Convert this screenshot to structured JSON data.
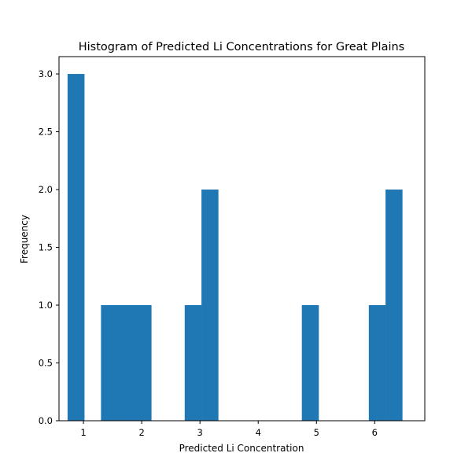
{
  "chart_data": {
    "type": "bar",
    "title": "Histogram of Predicted Li Concentrations for Great Plains",
    "xlabel": "Predicted Li Concentration",
    "ylabel": "Frequency",
    "xlim": [
      0.58,
      6.86
    ],
    "ylim": [
      0,
      3.15
    ],
    "xticks": [
      1,
      2,
      3,
      4,
      5,
      6
    ],
    "yticks": [
      0.0,
      0.5,
      1.0,
      1.5,
      2.0,
      2.5,
      3.0
    ],
    "bar_color": "#1f77b4",
    "bins": [
      {
        "x0": 0.727,
        "x1": 1.014,
        "count": 3
      },
      {
        "x0": 1.014,
        "x1": 1.301,
        "count": 0
      },
      {
        "x0": 1.301,
        "x1": 1.589,
        "count": 1
      },
      {
        "x0": 1.589,
        "x1": 1.876,
        "count": 1
      },
      {
        "x0": 1.876,
        "x1": 2.164,
        "count": 1
      },
      {
        "x0": 2.164,
        "x1": 2.451,
        "count": 0
      },
      {
        "x0": 2.451,
        "x1": 2.738,
        "count": 0
      },
      {
        "x0": 2.738,
        "x1": 3.026,
        "count": 1
      },
      {
        "x0": 3.026,
        "x1": 3.313,
        "count": 2
      },
      {
        "x0": 3.313,
        "x1": 3.6,
        "count": 0
      },
      {
        "x0": 3.6,
        "x1": 3.888,
        "count": 0
      },
      {
        "x0": 3.888,
        "x1": 4.175,
        "count": 0
      },
      {
        "x0": 4.175,
        "x1": 4.462,
        "count": 0
      },
      {
        "x0": 4.462,
        "x1": 4.749,
        "count": 0
      },
      {
        "x0": 4.749,
        "x1": 5.037,
        "count": 1
      },
      {
        "x0": 5.037,
        "x1": 5.324,
        "count": 0
      },
      {
        "x0": 5.324,
        "x1": 5.611,
        "count": 0
      },
      {
        "x0": 5.611,
        "x1": 5.899,
        "count": 0
      },
      {
        "x0": 5.899,
        "x1": 6.186,
        "count": 1
      },
      {
        "x0": 6.186,
        "x1": 6.473,
        "count": 2
      }
    ],
    "grid": false,
    "legend": "none"
  }
}
